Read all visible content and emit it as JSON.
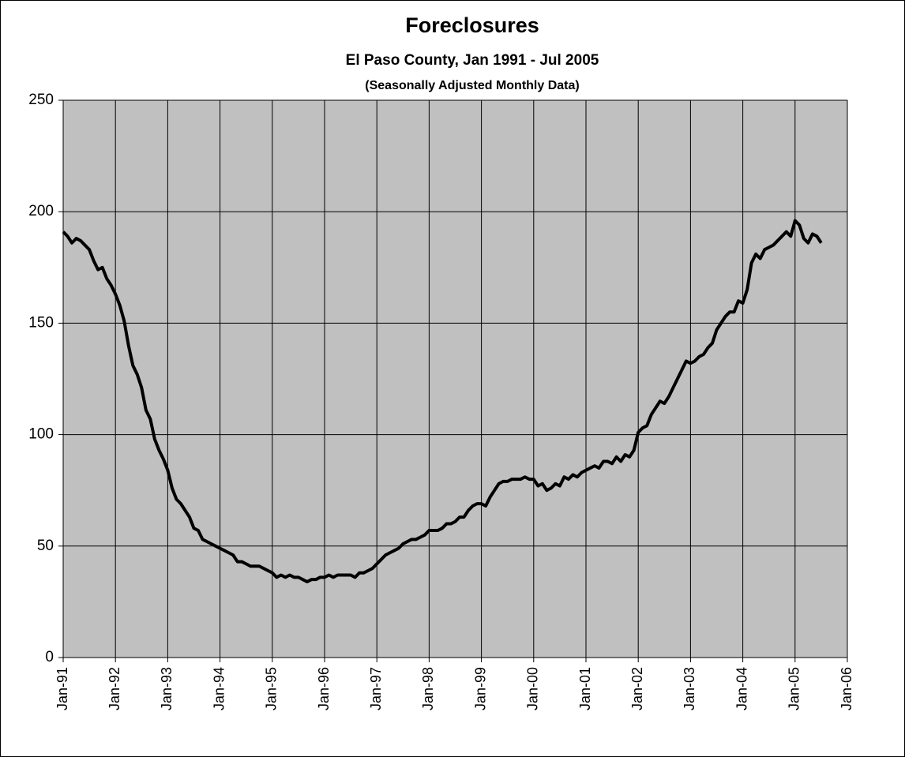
{
  "chart_data": {
    "type": "line",
    "title": "Foreclosures",
    "subtitle": "El Paso County, Jan 1991 - Jul 2005",
    "note": "(Seasonally Adjusted Monthly Data)",
    "color": "#000000",
    "background": "#c0c0c0",
    "grid": true,
    "x": [
      "1991-01",
      "1991-02",
      "1991-03",
      "1991-04",
      "1991-05",
      "1991-06",
      "1991-07",
      "1991-08",
      "1991-09",
      "1991-10",
      "1991-11",
      "1991-12",
      "1992-01",
      "1992-02",
      "1992-03",
      "1992-04",
      "1992-05",
      "1992-06",
      "1992-07",
      "1992-08",
      "1992-09",
      "1992-10",
      "1992-11",
      "1992-12",
      "1993-01",
      "1993-02",
      "1993-03",
      "1993-04",
      "1993-05",
      "1993-06",
      "1993-07",
      "1993-08",
      "1993-09",
      "1993-10",
      "1993-11",
      "1993-12",
      "1994-01",
      "1994-02",
      "1994-03",
      "1994-04",
      "1994-05",
      "1994-06",
      "1994-07",
      "1994-08",
      "1994-09",
      "1994-10",
      "1994-11",
      "1994-12",
      "1995-01",
      "1995-02",
      "1995-03",
      "1995-04",
      "1995-05",
      "1995-06",
      "1995-07",
      "1995-08",
      "1995-09",
      "1995-10",
      "1995-11",
      "1995-12",
      "1996-01",
      "1996-02",
      "1996-03",
      "1996-04",
      "1996-05",
      "1996-06",
      "1996-07",
      "1996-08",
      "1996-09",
      "1996-10",
      "1996-11",
      "1996-12",
      "1997-01",
      "1997-02",
      "1997-03",
      "1997-04",
      "1997-05",
      "1997-06",
      "1997-07",
      "1997-08",
      "1997-09",
      "1997-10",
      "1997-11",
      "1997-12",
      "1998-01",
      "1998-02",
      "1998-03",
      "1998-04",
      "1998-05",
      "1998-06",
      "1998-07",
      "1998-08",
      "1998-09",
      "1998-10",
      "1998-11",
      "1998-12",
      "1999-01",
      "1999-02",
      "1999-03",
      "1999-04",
      "1999-05",
      "1999-06",
      "1999-07",
      "1999-08",
      "1999-09",
      "1999-10",
      "1999-11",
      "1999-12",
      "2000-01",
      "2000-02",
      "2000-03",
      "2000-04",
      "2000-05",
      "2000-06",
      "2000-07",
      "2000-08",
      "2000-09",
      "2000-10",
      "2000-11",
      "2000-12",
      "2001-01",
      "2001-02",
      "2001-03",
      "2001-04",
      "2001-05",
      "2001-06",
      "2001-07",
      "2001-08",
      "2001-09",
      "2001-10",
      "2001-11",
      "2001-12",
      "2002-01",
      "2002-02",
      "2002-03",
      "2002-04",
      "2002-05",
      "2002-06",
      "2002-07",
      "2002-08",
      "2002-09",
      "2002-10",
      "2002-11",
      "2002-12",
      "2003-01",
      "2003-02",
      "2003-03",
      "2003-04",
      "2003-05",
      "2003-06",
      "2003-07",
      "2003-08",
      "2003-09",
      "2003-10",
      "2003-11",
      "2003-12",
      "2004-01",
      "2004-02",
      "2004-03",
      "2004-04",
      "2004-05",
      "2004-06",
      "2004-07",
      "2004-08",
      "2004-09",
      "2004-10",
      "2004-11",
      "2004-12",
      "2005-01",
      "2005-02",
      "2005-03",
      "2005-04",
      "2005-05",
      "2005-06",
      "2005-07"
    ],
    "values": [
      191,
      189,
      186,
      188,
      187,
      185,
      183,
      178,
      174,
      175,
      170,
      167,
      163,
      158,
      151,
      140,
      131,
      127,
      121,
      111,
      107,
      98,
      93,
      89,
      84,
      76,
      71,
      69,
      66,
      63,
      58,
      57,
      53,
      52,
      51,
      50,
      49,
      48,
      47,
      46,
      43,
      43,
      42,
      41,
      41,
      41,
      40,
      39,
      38,
      36,
      37,
      36,
      37,
      36,
      36,
      35,
      34,
      35,
      35,
      36,
      36,
      37,
      36,
      37,
      37,
      37,
      37,
      36,
      38,
      38,
      39,
      40,
      42,
      44,
      46,
      47,
      48,
      49,
      51,
      52,
      53,
      53,
      54,
      55,
      57,
      57,
      57,
      58,
      60,
      60,
      61,
      63,
      63,
      66,
      68,
      69,
      69,
      68,
      72,
      75,
      78,
      79,
      79,
      80,
      80,
      80,
      81,
      80,
      80,
      77,
      78,
      75,
      76,
      78,
      77,
      81,
      80,
      82,
      81,
      83,
      84,
      85,
      86,
      85,
      88,
      88,
      87,
      90,
      88,
      91,
      90,
      93,
      101,
      103,
      104,
      109,
      112,
      115,
      114,
      117,
      121,
      125,
      129,
      133,
      132,
      133,
      135,
      136,
      139,
      141,
      147,
      150,
      153,
      155,
      155,
      160,
      159,
      165,
      177,
      181,
      179,
      183,
      184,
      185,
      187,
      189,
      191,
      189,
      196,
      194,
      188,
      186,
      190,
      189,
      186
    ],
    "xlim": [
      "1991-01",
      "2006-01"
    ],
    "xticks": [
      {
        "value": "1991-01",
        "label": "Jan-91"
      },
      {
        "value": "1992-01",
        "label": "Jan-92"
      },
      {
        "value": "1993-01",
        "label": "Jan-93"
      },
      {
        "value": "1994-01",
        "label": "Jan-94"
      },
      {
        "value": "1995-01",
        "label": "Jan-95"
      },
      {
        "value": "1996-01",
        "label": "Jan-96"
      },
      {
        "value": "1997-01",
        "label": "Jan-97"
      },
      {
        "value": "1998-01",
        "label": "Jan-98"
      },
      {
        "value": "1999-01",
        "label": "Jan-99"
      },
      {
        "value": "2000-01",
        "label": "Jan-00"
      },
      {
        "value": "2001-01",
        "label": "Jan-01"
      },
      {
        "value": "2002-01",
        "label": "Jan-02"
      },
      {
        "value": "2003-01",
        "label": "Jan-03"
      },
      {
        "value": "2004-01",
        "label": "Jan-04"
      },
      {
        "value": "2005-01",
        "label": "Jan-05"
      },
      {
        "value": "2006-01",
        "label": "Jan-06"
      }
    ],
    "ylim": [
      0,
      250
    ],
    "yticks": [
      0,
      50,
      100,
      150,
      200,
      250
    ]
  }
}
